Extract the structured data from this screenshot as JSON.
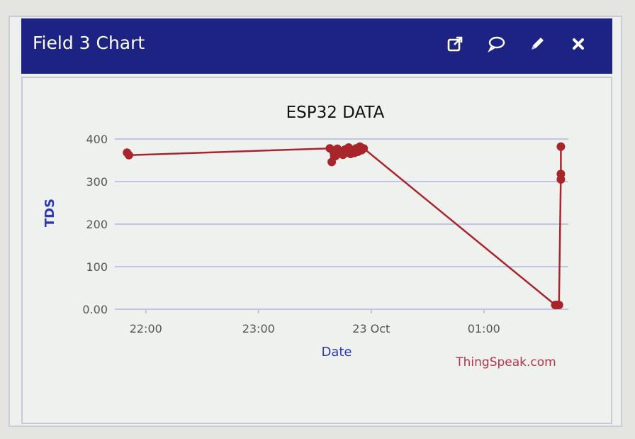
{
  "widget": {
    "title": "Field 3 Chart",
    "icons": [
      "external-link-icon",
      "comment-icon",
      "pencil-icon",
      "close-icon"
    ]
  },
  "colors": {
    "header_bg": "#1c2382",
    "series": "#a8262b",
    "grid": "#c0c6e2",
    "axis_label": "#2b39b0",
    "credit": "#b2344a"
  },
  "chart_data": {
    "type": "line",
    "title": "ESP32 DATA",
    "xlabel": "Date",
    "ylabel": "TDS",
    "x_ticks": [
      "22:00",
      "23:00",
      "23 Oct",
      "01:00"
    ],
    "y_ticks": [
      "0.00",
      "100",
      "200",
      "300",
      "400"
    ],
    "ylim": [
      0,
      400
    ],
    "xlim": [
      "2023-10-22T21:45",
      "2023-10-23T01:45"
    ],
    "grid": true,
    "credit": "ThingSpeak.com",
    "series": [
      {
        "points": [
          {
            "x": "2023-10-22T21:50",
            "y": 368
          },
          {
            "x": "2023-10-22T21:51",
            "y": 362
          },
          {
            "x": "2023-10-22T23:38",
            "y": 378
          },
          {
            "x": "2023-10-22T23:39",
            "y": 346
          },
          {
            "x": "2023-10-22T23:40",
            "y": 372
          },
          {
            "x": "2023-10-22T23:41",
            "y": 360
          },
          {
            "x": "2023-10-22T23:42",
            "y": 377
          },
          {
            "x": "2023-10-22T23:43",
            "y": 366
          },
          {
            "x": "2023-10-22T23:44",
            "y": 371
          },
          {
            "x": "2023-10-22T23:45",
            "y": 363
          },
          {
            "x": "2023-10-22T23:46",
            "y": 375
          },
          {
            "x": "2023-10-22T23:47",
            "y": 368
          },
          {
            "x": "2023-10-22T23:48",
            "y": 380
          },
          {
            "x": "2023-10-22T23:49",
            "y": 365
          },
          {
            "x": "2023-10-22T23:50",
            "y": 373
          },
          {
            "x": "2023-10-22T23:51",
            "y": 367
          },
          {
            "x": "2023-10-22T23:52",
            "y": 378
          },
          {
            "x": "2023-10-22T23:53",
            "y": 370
          },
          {
            "x": "2023-10-22T23:54",
            "y": 382
          },
          {
            "x": "2023-10-22T23:55",
            "y": 374
          },
          {
            "x": "2023-10-22T23:56",
            "y": 378
          },
          {
            "x": "2023-10-23T01:38",
            "y": 10
          },
          {
            "x": "2023-10-23T01:39",
            "y": 10
          },
          {
            "x": "2023-10-23T01:40",
            "y": 10
          },
          {
            "x": "2023-10-23T01:41",
            "y": 318
          },
          {
            "x": "2023-10-23T01:41",
            "y": 305
          },
          {
            "x": "2023-10-23T01:41",
            "y": 382
          }
        ]
      }
    ]
  }
}
